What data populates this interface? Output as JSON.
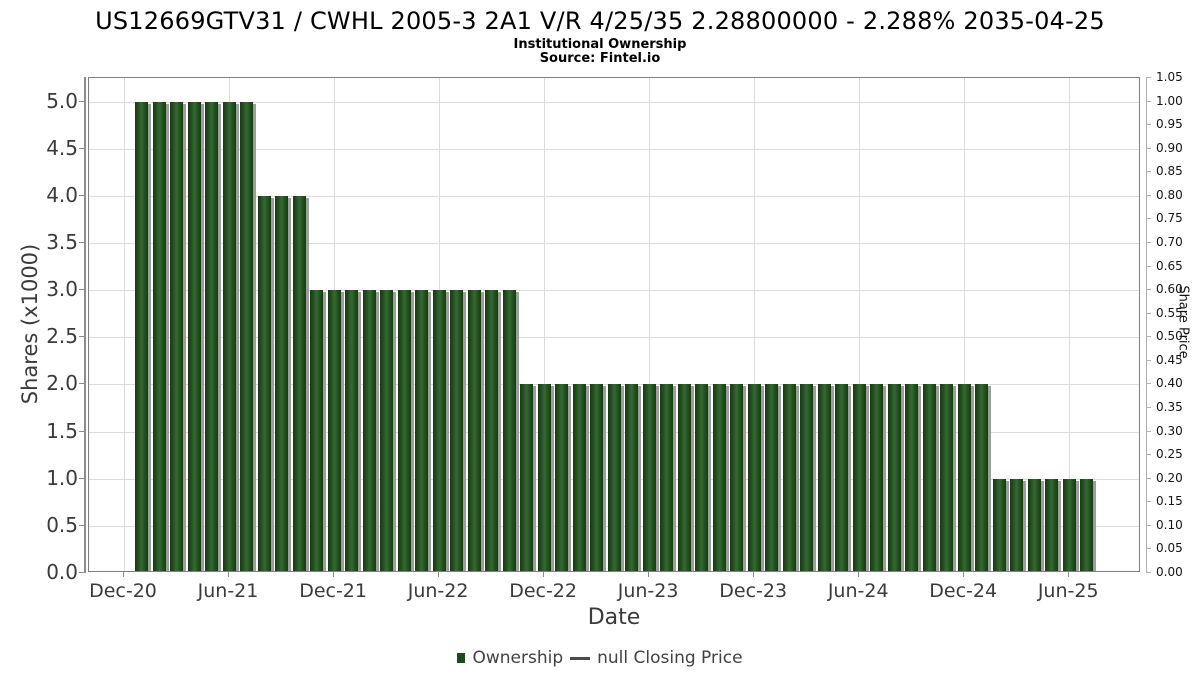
{
  "header": {
    "title": "US12669GTV31 / CWHL 2005-3 2A1 V/R 4/25/35 2.28800000 - 2.288% 2035-04-25",
    "subtitle": "Institutional Ownership",
    "source": "Source: Fintel.io"
  },
  "chart_data": {
    "type": "bar",
    "title": "US12669GTV31 / CWHL 2005-3 2A1 V/R 4/25/35 2.28800000 - 2.288% 2035-04-25",
    "subtitle": "Institutional Ownership",
    "source": "Source: Fintel.io",
    "xlabel": "Date",
    "ylabel_left": "Shares (x1000)",
    "ylabel_right": "Share Price",
    "categories": [
      "Jan-21",
      "Feb-21",
      "Mar-21",
      "Apr-21",
      "May-21",
      "Jun-21",
      "Jul-21",
      "Aug-21",
      "Sep-21",
      "Oct-21",
      "Nov-21",
      "Dec-21",
      "Jan-22",
      "Feb-22",
      "Mar-22",
      "Apr-22",
      "May-22",
      "Jun-22",
      "Jul-22",
      "Aug-22",
      "Sep-22",
      "Oct-22",
      "Nov-22",
      "Dec-22",
      "Jan-23",
      "Feb-23",
      "Mar-23",
      "Apr-23",
      "May-23",
      "Jun-23",
      "Jul-23",
      "Aug-23",
      "Sep-23",
      "Oct-23",
      "Nov-23",
      "Dec-23",
      "Jan-24",
      "Feb-24",
      "Mar-24",
      "Apr-24",
      "May-24",
      "Jun-24",
      "Jul-24",
      "Aug-24",
      "Sep-24",
      "Oct-24",
      "Nov-24",
      "Dec-24",
      "Jan-25",
      "Feb-25",
      "Mar-25",
      "Apr-25",
      "May-25",
      "Jun-25",
      "Jul-25"
    ],
    "values": [
      5,
      5,
      5,
      5,
      5,
      5,
      5,
      4,
      4,
      4,
      3,
      3,
      3,
      3,
      3,
      3,
      3,
      3,
      3,
      3,
      3,
      3,
      2,
      2,
      2,
      2,
      2,
      2,
      2,
      2,
      2,
      2,
      2,
      2,
      2,
      2,
      2,
      2,
      2,
      2,
      2,
      2,
      2,
      2,
      2,
      2,
      2,
      2,
      2,
      1,
      1,
      1,
      1,
      1,
      1
    ],
    "series_name": "Ownership",
    "price_series": {
      "name": "null Closing Price",
      "values": []
    },
    "x_ticks": [
      {
        "label": "Dec-20",
        "month": 0
      },
      {
        "label": "Jun-21",
        "month": 6
      },
      {
        "label": "Dec-21",
        "month": 12
      },
      {
        "label": "Jun-22",
        "month": 18
      },
      {
        "label": "Dec-22",
        "month": 24
      },
      {
        "label": "Jun-23",
        "month": 30
      },
      {
        "label": "Dec-23",
        "month": 36
      },
      {
        "label": "Jun-24",
        "month": 42
      },
      {
        "label": "Dec-24",
        "month": 48
      },
      {
        "label": "Jun-25",
        "month": 54
      }
    ],
    "first_bar_month": 1,
    "xlim_months": [
      -2.0,
      58.1
    ],
    "ylim_left": [
      0,
      5.25
    ],
    "yticks_left": [
      "0.0",
      "0.5",
      "1.0",
      "1.5",
      "2.0",
      "2.5",
      "3.0",
      "3.5",
      "4.0",
      "4.5",
      "5.0"
    ],
    "ylim_right": [
      0,
      1.05
    ],
    "yticks_right": [
      "0.00",
      "0.05",
      "0.10",
      "0.15",
      "0.20",
      "0.25",
      "0.30",
      "0.35",
      "0.40",
      "0.45",
      "0.50",
      "0.55",
      "0.60",
      "0.65",
      "0.70",
      "0.75",
      "0.80",
      "0.85",
      "0.90",
      "0.95",
      "1.00",
      "1.05"
    ],
    "grid": true,
    "legend_position": "bottom-center",
    "legend": [
      {
        "label": "Ownership",
        "marker": "square",
        "color": "#1e4a1e"
      },
      {
        "label": "null Closing Price",
        "marker": "line",
        "color": "#4a4a4a"
      }
    ],
    "colors": {
      "bar_edge": "#153a11",
      "bar_mid": "#275322",
      "bar_light": "#336b33",
      "bar_shadow": "#9d9d9d",
      "gridline": "#dcdcdc",
      "plot_border": "#7f7f7f",
      "tick_text": "#3a3a3a"
    }
  }
}
